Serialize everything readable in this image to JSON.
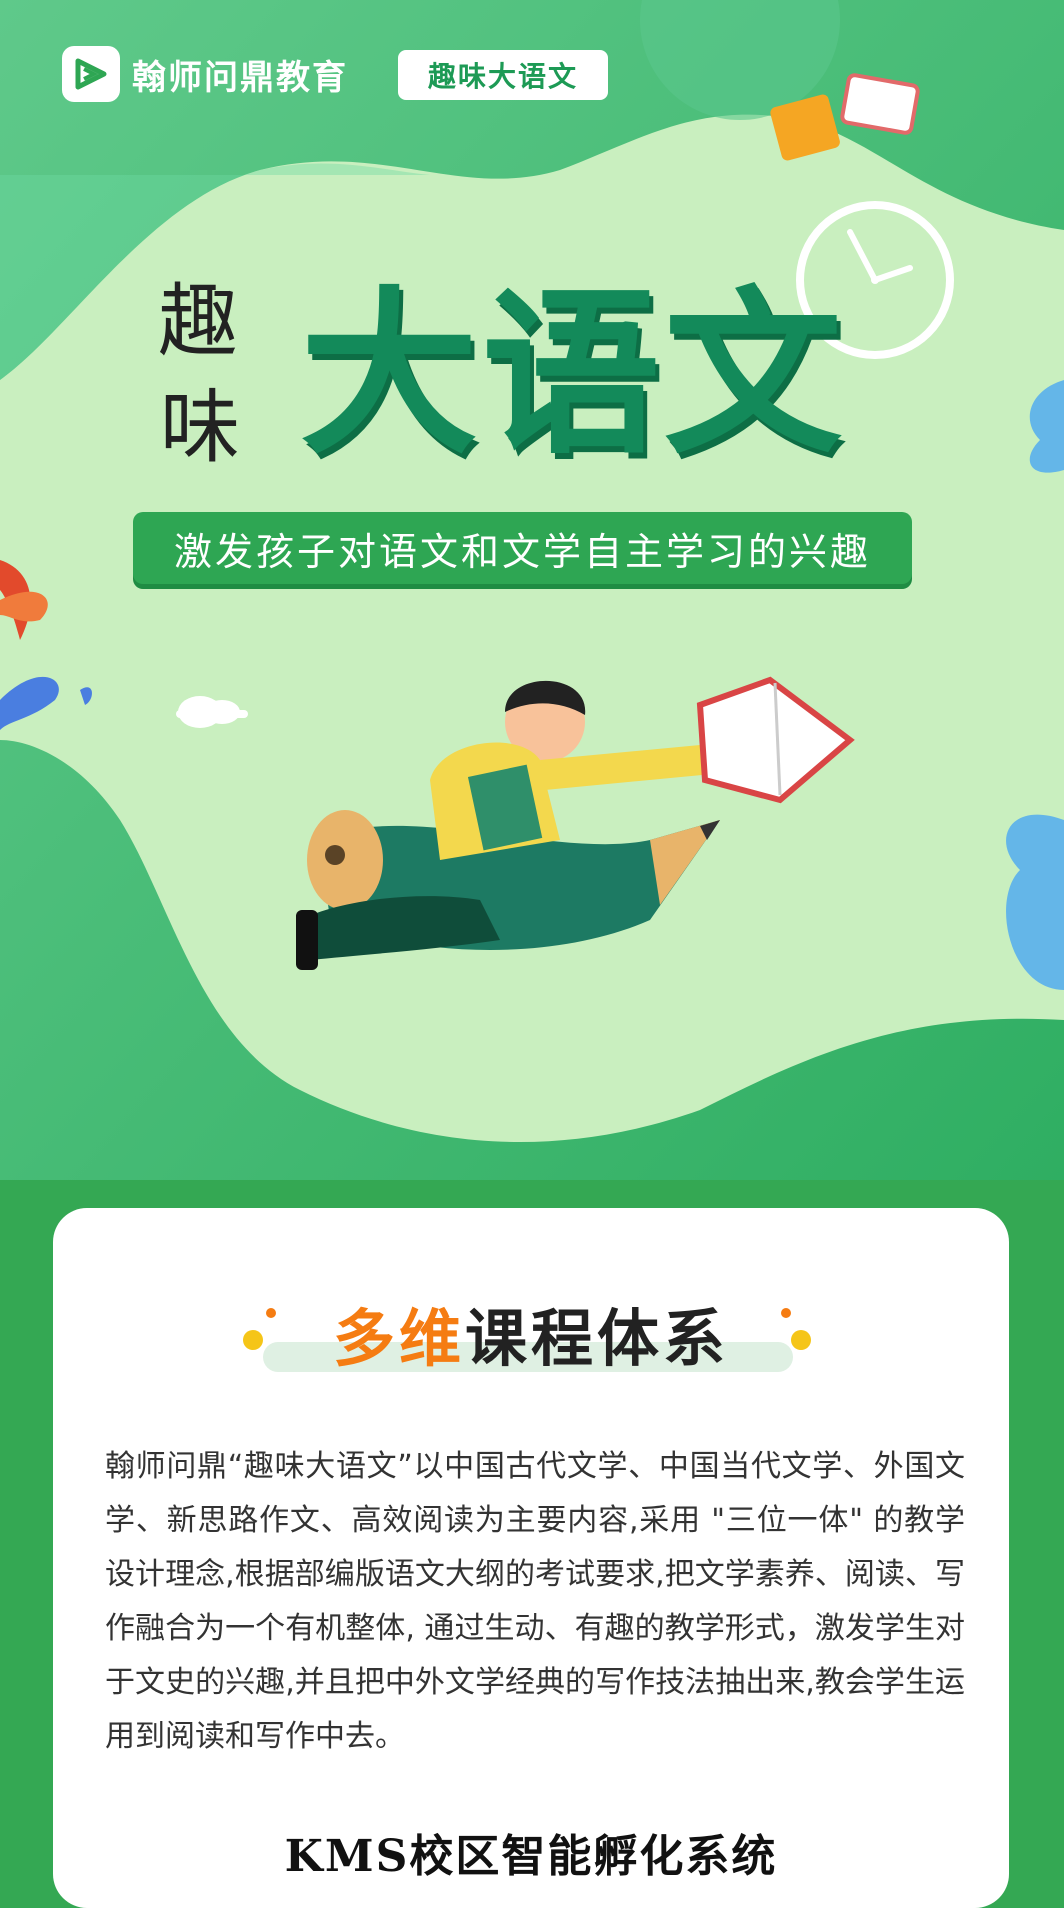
{
  "header": {
    "brand": "翰师问鼎教育",
    "tag": "趣味大语文"
  },
  "hero": {
    "title_small_1": "趣",
    "title_small_2": "味",
    "title_big": "大语文",
    "slogan": "激发孩子对语文和文学自主学习的兴趣"
  },
  "card": {
    "title_highlight": "多维",
    "title_rest": "课程体系",
    "paragraph": "翰师问鼎“趣味大语文”以中国古代文学、中国当代文学、外国文学、新思路作文、高效阅读为主要内容,采用 \"三位一体\" 的教学设计理念,根据部编版语文大纲的考试要求,把文学素养、阅读、写作融合为一个有机整体, 通过生动、有趣的教学形式，激发学生对于文史的兴趣,并且把中外文学经典的写作技法抽出来,教会学生运用到阅读和写作中去。",
    "next_heading": "KMS校区智能孵化系统"
  },
  "colors": {
    "brand_green": "#138a5a",
    "bg_green": "#34a853",
    "light_green": "#c9efbf",
    "accent_orange": "#f57c12"
  },
  "icons": [
    "logo-icon",
    "book-icon",
    "clock-icon",
    "cloud-icon",
    "leaf-icon",
    "boy-on-pencil-illustration"
  ]
}
